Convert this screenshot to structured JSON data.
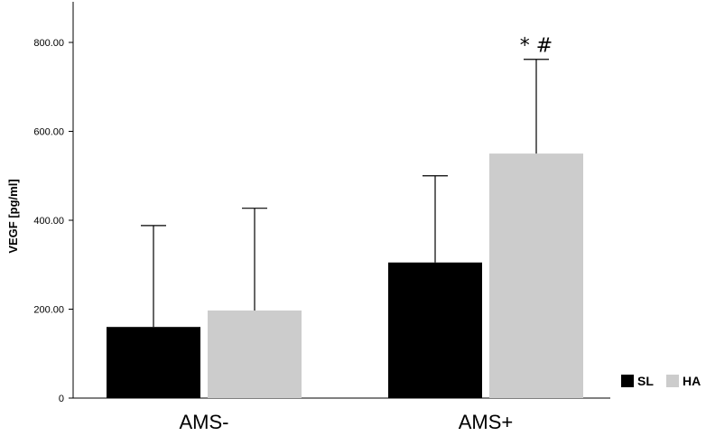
{
  "colors": {
    "SL": "#000000",
    "HA": "#cccccc",
    "axis": "#000000"
  },
  "chart_data": {
    "type": "bar",
    "title": "",
    "xlabel": "",
    "ylabel": "VEGF [pg/ml]",
    "ylim": [
      0,
      900
    ],
    "yticks": [
      0,
      200,
      400,
      600,
      800
    ],
    "ytick_labels": [
      "0",
      "200.00",
      "400.00",
      "600.00",
      "800.00"
    ],
    "categories": [
      "AMS-",
      "AMS+"
    ],
    "series": [
      {
        "name": "SL",
        "values": [
          160,
          305
        ],
        "errors": [
          228,
          195
        ]
      },
      {
        "name": "HA",
        "values": [
          197,
          550
        ],
        "errors": [
          230,
          212
        ]
      }
    ],
    "annotations": [
      {
        "category": "AMS+",
        "series": "HA",
        "text": "* #"
      }
    ],
    "legend": {
      "position": "bottom-right",
      "entries": [
        "SL",
        "HA"
      ]
    }
  }
}
